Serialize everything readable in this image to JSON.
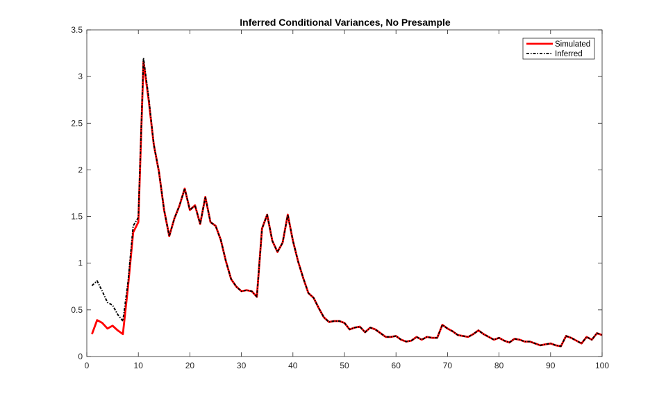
{
  "chart_data": {
    "type": "line",
    "title": "Inferred Conditional Variances, No Presample",
    "xlabel": "",
    "ylabel": "",
    "xlim": [
      0,
      100
    ],
    "ylim": [
      0,
      3.5
    ],
    "xticks": [
      0,
      10,
      20,
      30,
      40,
      50,
      60,
      70,
      80,
      90,
      100
    ],
    "yticks": [
      0,
      0.5,
      1,
      1.5,
      2,
      2.5,
      3,
      3.5
    ],
    "xtick_labels": [
      "0",
      "10",
      "20",
      "30",
      "40",
      "50",
      "60",
      "70",
      "80",
      "90",
      "100"
    ],
    "ytick_labels": [
      "0",
      "0.5",
      "1",
      "1.5",
      "2",
      "2.5",
      "3",
      "3.5"
    ],
    "grid": false,
    "legend_position": "top-right",
    "series": [
      {
        "name": "Simulated",
        "color": "#ff0000",
        "style": "solid",
        "x": [
          1,
          2,
          3,
          4,
          5,
          6,
          7,
          8,
          9,
          10,
          11,
          12,
          13,
          14,
          15,
          16,
          17,
          18,
          19,
          20,
          21,
          22,
          23,
          24,
          25,
          26,
          27,
          28,
          29,
          30,
          31,
          32,
          33,
          34,
          35,
          36,
          37,
          38,
          39,
          40,
          41,
          42,
          43,
          44,
          45,
          46,
          47,
          48,
          49,
          50,
          51,
          52,
          53,
          54,
          55,
          56,
          57,
          58,
          59,
          60,
          61,
          62,
          63,
          64,
          65,
          66,
          67,
          68,
          69,
          70,
          71,
          72,
          73,
          74,
          75,
          76,
          77,
          78,
          79,
          80,
          81,
          82,
          83,
          84,
          85,
          86,
          87,
          88,
          89,
          90,
          91,
          92,
          93,
          94,
          95,
          96,
          97,
          98,
          99,
          100
        ],
        "values": [
          0.24,
          0.39,
          0.36,
          0.3,
          0.33,
          0.28,
          0.24,
          0.75,
          1.33,
          1.44,
          3.16,
          2.75,
          2.27,
          1.98,
          1.57,
          1.29,
          1.48,
          1.62,
          1.8,
          1.57,
          1.62,
          1.42,
          1.71,
          1.44,
          1.4,
          1.25,
          1.02,
          0.83,
          0.75,
          0.7,
          0.71,
          0.7,
          0.64,
          1.37,
          1.52,
          1.24,
          1.12,
          1.22,
          1.52,
          1.24,
          1.02,
          0.84,
          0.68,
          0.63,
          0.52,
          0.42,
          0.37,
          0.38,
          0.38,
          0.36,
          0.29,
          0.31,
          0.32,
          0.26,
          0.31,
          0.29,
          0.25,
          0.21,
          0.21,
          0.22,
          0.18,
          0.16,
          0.17,
          0.21,
          0.18,
          0.21,
          0.2,
          0.2,
          0.34,
          0.3,
          0.27,
          0.23,
          0.22,
          0.21,
          0.24,
          0.28,
          0.24,
          0.21,
          0.18,
          0.2,
          0.17,
          0.15,
          0.19,
          0.18,
          0.16,
          0.16,
          0.14,
          0.12,
          0.13,
          0.14,
          0.12,
          0.11,
          0.22,
          0.2,
          0.17,
          0.14,
          0.21,
          0.18,
          0.25,
          0.23
        ]
      },
      {
        "name": "Inferred",
        "color": "#000000",
        "style": "dash-dot",
        "x": [
          1,
          2,
          3,
          4,
          5,
          6,
          7,
          8,
          9,
          10,
          11,
          12,
          13,
          14,
          15,
          16,
          17,
          18,
          19,
          20,
          21,
          22,
          23,
          24,
          25,
          26,
          27,
          28,
          29,
          30,
          31,
          32,
          33,
          34,
          35,
          36,
          37,
          38,
          39,
          40,
          41,
          42,
          43,
          44,
          45,
          46,
          47,
          48,
          49,
          50,
          51,
          52,
          53,
          54,
          55,
          56,
          57,
          58,
          59,
          60,
          61,
          62,
          63,
          64,
          65,
          66,
          67,
          68,
          69,
          70,
          71,
          72,
          73,
          74,
          75,
          76,
          77,
          78,
          79,
          80,
          81,
          82,
          83,
          84,
          85,
          86,
          87,
          88,
          89,
          90,
          91,
          92,
          93,
          94,
          95,
          96,
          97,
          98,
          99,
          100
        ],
        "values": [
          0.76,
          0.81,
          0.7,
          0.58,
          0.55,
          0.45,
          0.38,
          0.8,
          1.4,
          1.49,
          3.2,
          2.78,
          2.27,
          1.98,
          1.57,
          1.29,
          1.48,
          1.62,
          1.8,
          1.57,
          1.62,
          1.42,
          1.71,
          1.44,
          1.4,
          1.25,
          1.02,
          0.83,
          0.75,
          0.7,
          0.71,
          0.7,
          0.64,
          1.37,
          1.52,
          1.24,
          1.12,
          1.22,
          1.52,
          1.24,
          1.02,
          0.84,
          0.68,
          0.63,
          0.52,
          0.42,
          0.37,
          0.38,
          0.38,
          0.36,
          0.29,
          0.31,
          0.32,
          0.26,
          0.31,
          0.29,
          0.25,
          0.21,
          0.21,
          0.22,
          0.18,
          0.16,
          0.17,
          0.21,
          0.18,
          0.21,
          0.2,
          0.2,
          0.34,
          0.3,
          0.27,
          0.23,
          0.22,
          0.21,
          0.24,
          0.28,
          0.24,
          0.21,
          0.18,
          0.2,
          0.17,
          0.15,
          0.19,
          0.18,
          0.16,
          0.16,
          0.14,
          0.12,
          0.13,
          0.14,
          0.12,
          0.11,
          0.22,
          0.2,
          0.17,
          0.14,
          0.21,
          0.18,
          0.25,
          0.23
        ]
      }
    ]
  }
}
